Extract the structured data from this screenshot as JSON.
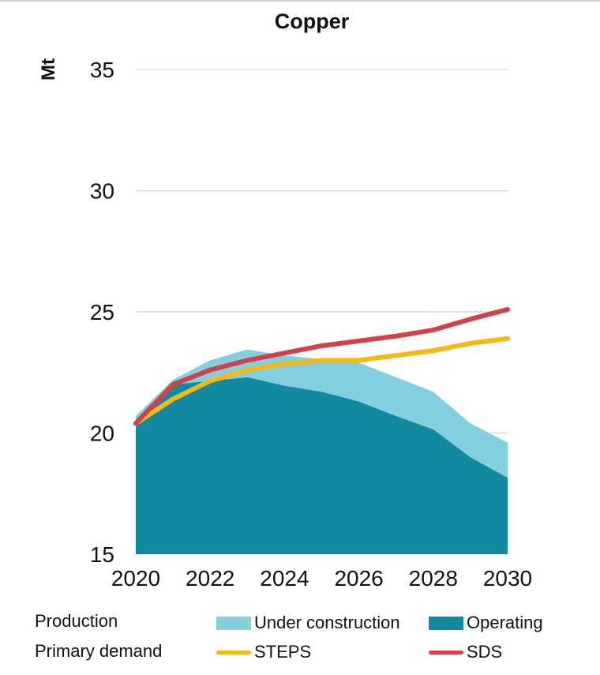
{
  "chart_data": {
    "type": "area",
    "title": "Copper",
    "ylabel": "Mt",
    "xlabel": "",
    "xlim": [
      2020,
      2030
    ],
    "ylim": [
      15,
      35
    ],
    "yticks": [
      15,
      20,
      25,
      30,
      35
    ],
    "xticks": [
      2020,
      2022,
      2024,
      2026,
      2028,
      2030
    ],
    "grid": true,
    "x": [
      2020,
      2021,
      2022,
      2023,
      2024,
      2025,
      2026,
      2027,
      2028,
      2029,
      2030
    ],
    "series": [
      {
        "name": "Operating",
        "kind": "area",
        "group": "Production",
        "color": "#11899e",
        "values": [
          20.5,
          22.0,
          22.15,
          22.3,
          21.95,
          21.7,
          21.3,
          20.7,
          20.15,
          19.0,
          18.15
        ]
      },
      {
        "name": "Under construction",
        "kind": "area",
        "group": "Production",
        "color": "#82cfe0",
        "stacked_top": [
          20.7,
          22.2,
          23.0,
          23.45,
          23.2,
          23.05,
          22.9,
          22.3,
          21.7,
          20.4,
          19.6
        ],
        "values": [
          0.2,
          0.2,
          0.85,
          1.15,
          1.25,
          1.35,
          1.6,
          1.6,
          1.55,
          1.4,
          1.45
        ]
      },
      {
        "name": "STEPS",
        "kind": "line",
        "group": "Primary demand",
        "color": "#f5b914",
        "values": [
          20.4,
          21.4,
          22.15,
          22.6,
          22.85,
          23.0,
          23.0,
          23.2,
          23.4,
          23.7,
          23.9
        ]
      },
      {
        "name": "SDS",
        "kind": "line",
        "group": "Primary demand",
        "color": "#d0414a",
        "values": [
          20.4,
          22.0,
          22.6,
          23.0,
          23.3,
          23.6,
          23.8,
          24.0,
          24.25,
          24.7,
          25.1
        ]
      }
    ],
    "legend": {
      "placement": "bottom",
      "groups": [
        {
          "label": "Production",
          "items": [
            "Under construction",
            "Operating"
          ]
        },
        {
          "label": "Primary demand",
          "items": [
            "STEPS",
            "SDS"
          ]
        }
      ]
    }
  }
}
